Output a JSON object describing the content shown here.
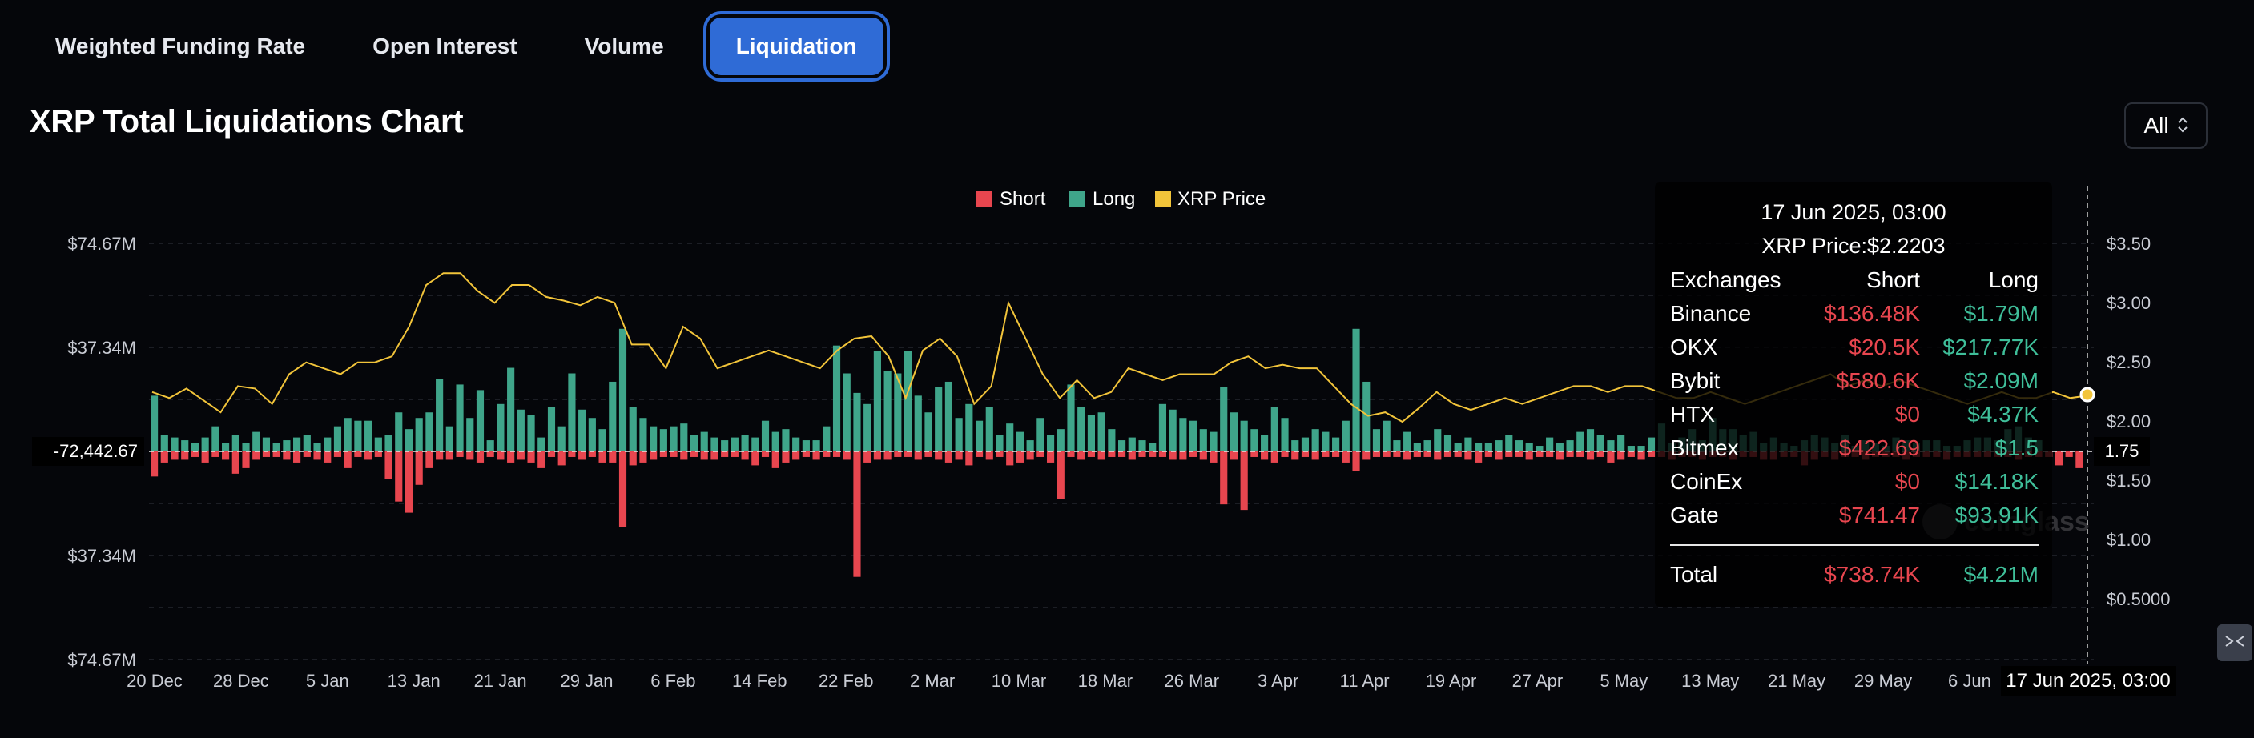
{
  "tabs": [
    {
      "label": "Weighted Funding Rate",
      "active": false
    },
    {
      "label": "Open Interest",
      "active": false
    },
    {
      "label": "Volume",
      "active": false
    },
    {
      "label": "Liquidation",
      "active": true
    }
  ],
  "page_title": "XRP Total Liquidations Chart",
  "range_select": {
    "value": "All",
    "icon": "chevron-up-down-icon"
  },
  "watermark": "coinglass",
  "fullscreen_icon": "collapse-arrows-icon",
  "colors": {
    "short": "#e8464f",
    "long": "#3fa58a",
    "price": "#f2c43a",
    "background": "#05060a",
    "accent": "#2f6bd6"
  },
  "crosshair": {
    "y_left_label": "-72,442.67",
    "y_right_label": "1.75",
    "x_label": "17 Jun 2025, 03:00"
  },
  "tooltip": {
    "date": "17 Jun 2025, 03:00",
    "price_line": "XRP Price:$2.2203",
    "headers": [
      "Exchanges",
      "Short",
      "Long"
    ],
    "rows": [
      {
        "exchange": "Binance",
        "short": "$136.48K",
        "long": "$1.79M"
      },
      {
        "exchange": "OKX",
        "short": "$20.5K",
        "long": "$217.77K"
      },
      {
        "exchange": "Bybit",
        "short": "$580.6K",
        "long": "$2.09M"
      },
      {
        "exchange": "HTX",
        "short": "$0",
        "long": "$4.37K"
      },
      {
        "exchange": "Bitmex",
        "short": "$422.69",
        "long": "$1.5"
      },
      {
        "exchange": "CoinEx",
        "short": "$0",
        "long": "$14.18K"
      },
      {
        "exchange": "Gate",
        "short": "$741.47",
        "long": "$93.91K"
      }
    ],
    "total": {
      "label": "Total",
      "short": "$738.74K",
      "long": "$4.21M"
    }
  },
  "chart_data": {
    "type": "bar",
    "title": "",
    "legend": [
      "Short",
      "Long",
      "XRP Price"
    ],
    "legend_position": "top-center",
    "grid": true,
    "x_ticks": [
      "20 Dec",
      "28 Dec",
      "5 Jan",
      "13 Jan",
      "21 Jan",
      "29 Jan",
      "6 Feb",
      "14 Feb",
      "22 Feb",
      "2 Mar",
      "10 Mar",
      "18 Mar",
      "26 Mar",
      "3 Apr",
      "11 Apr",
      "19 Apr",
      "27 Apr",
      "5 May",
      "13 May",
      "21 May",
      "29 May",
      "6 Jun"
    ],
    "y_left_ticks": [
      "$74.67M",
      "$37.34M",
      "$37.34M",
      "$74.67M"
    ],
    "y_left_range": [
      -74.67,
      74.67
    ],
    "y_left_unit": "M USD",
    "y_right_ticks": [
      "$3.50",
      "$3.00",
      "$2.50",
      "$2.00",
      "$1.50",
      "$1.00",
      "$0.5000"
    ],
    "y_right_range": [
      0.5,
      3.5
    ],
    "series": [
      {
        "name": "Long",
        "values": [
          20,
          6,
          5,
          4,
          3,
          5,
          9,
          3,
          6,
          3,
          7,
          5,
          3,
          4,
          5,
          6,
          3,
          5,
          9,
          12,
          11,
          11,
          5,
          6,
          14,
          8,
          12,
          14,
          26,
          9,
          24,
          12,
          22,
          4,
          17,
          30,
          15,
          13,
          5,
          16,
          9,
          28,
          15,
          12,
          8,
          25,
          44,
          16,
          12,
          9,
          8,
          9,
          10,
          6,
          7,
          5,
          4,
          5,
          6,
          5,
          11,
          7,
          8,
          5,
          4,
          4,
          9,
          38,
          28,
          21,
          17,
          36,
          29,
          28,
          36,
          20,
          14,
          23,
          25,
          12,
          17,
          11,
          16,
          6,
          10,
          7,
          4,
          12,
          6,
          8,
          24,
          16,
          13,
          14,
          8,
          4,
          5,
          4,
          3,
          17,
          15,
          12,
          11,
          8,
          7,
          23,
          14,
          11,
          8,
          6,
          16,
          12,
          4,
          5,
          8,
          7,
          5,
          11,
          44,
          25,
          8,
          11,
          4,
          7,
          3,
          4,
          8,
          6,
          3,
          5,
          3,
          3,
          4,
          6,
          4,
          3,
          2,
          5,
          3,
          4,
          7,
          8,
          6,
          4,
          6,
          2,
          2,
          5,
          10,
          3,
          5,
          8,
          4,
          12,
          8,
          8,
          6,
          7,
          3,
          5,
          3,
          2,
          4,
          6,
          5,
          3,
          6,
          2,
          4,
          3,
          2,
          5,
          4,
          3,
          4,
          4,
          2,
          2,
          4,
          5,
          5,
          4,
          8,
          9,
          5,
          4
        ],
        "note_unit": "M USD"
      },
      {
        "name": "Short",
        "values": [
          9,
          4,
          3,
          3,
          2,
          4,
          2,
          3,
          8,
          6,
          3,
          2,
          2,
          3,
          4,
          2,
          3,
          4,
          2,
          6,
          2,
          3,
          2,
          10,
          18,
          22,
          12,
          6,
          3,
          3,
          2,
          3,
          4,
          2,
          3,
          4,
          3,
          4,
          6,
          2,
          5,
          2,
          3,
          2,
          4,
          4,
          27,
          5,
          4,
          3,
          2,
          2,
          3,
          2,
          3,
          3,
          2,
          2,
          3,
          5,
          2,
          6,
          4,
          3,
          2,
          3,
          2,
          2,
          3,
          45,
          4,
          3,
          3,
          2,
          2,
          3,
          2,
          3,
          4,
          3,
          5,
          2,
          3,
          2,
          5,
          4,
          3,
          2,
          4,
          17,
          2,
          3,
          2,
          3,
          2,
          2,
          3,
          2,
          2,
          2,
          3,
          3,
          2,
          3,
          4,
          19,
          3,
          21,
          2,
          3,
          4,
          2,
          3,
          2,
          3,
          2,
          2,
          4,
          7,
          3,
          2,
          2,
          2,
          3,
          2,
          2,
          3,
          2,
          2,
          3,
          4,
          2,
          3,
          2,
          2,
          3,
          2,
          2,
          3,
          2,
          2,
          3,
          2,
          4,
          3,
          2,
          3,
          2,
          2,
          3,
          2,
          2,
          3,
          2,
          2,
          3,
          2,
          2,
          3,
          3,
          2,
          2,
          5,
          3,
          2,
          3,
          2,
          2,
          3,
          2,
          2,
          2,
          3,
          2,
          2,
          2,
          3,
          2,
          2,
          2,
          2,
          2,
          2,
          3,
          2,
          2,
          2,
          5,
          2,
          6
        ]
      },
      {
        "name": "XRP Price",
        "values": [
          2.25,
          2.2,
          2.28,
          2.18,
          2.08,
          2.3,
          2.28,
          2.15,
          2.4,
          2.5,
          2.45,
          2.4,
          2.5,
          2.5,
          2.55,
          2.8,
          3.15,
          3.25,
          3.25,
          3.1,
          3.0,
          3.15,
          3.15,
          3.05,
          3.02,
          2.98,
          3.05,
          3.0,
          2.65,
          2.65,
          2.45,
          2.8,
          2.7,
          2.45,
          2.5,
          2.55,
          2.6,
          2.55,
          2.5,
          2.45,
          2.6,
          2.7,
          2.72,
          2.55,
          2.2,
          2.6,
          2.7,
          2.55,
          2.15,
          2.3,
          3.0,
          2.7,
          2.4,
          2.2,
          2.35,
          2.2,
          2.25,
          2.45,
          2.4,
          2.35,
          2.4,
          2.4,
          2.4,
          2.5,
          2.55,
          2.45,
          2.48,
          2.45,
          2.45,
          2.3,
          2.15,
          2.05,
          2.08,
          2.0,
          2.12,
          2.25,
          2.15,
          2.1,
          2.15,
          2.2,
          2.15,
          2.2,
          2.25,
          2.3,
          2.3,
          2.25,
          2.3,
          2.3,
          2.25,
          2.2,
          2.2,
          2.25,
          2.2,
          2.15,
          2.2,
          2.25,
          2.3,
          2.35,
          2.4,
          2.3,
          2.35,
          2.3,
          2.35,
          2.3,
          2.25,
          2.2,
          2.15,
          2.2,
          2.25,
          2.2,
          2.2,
          2.25,
          2.2,
          2.22
        ]
      }
    ]
  }
}
